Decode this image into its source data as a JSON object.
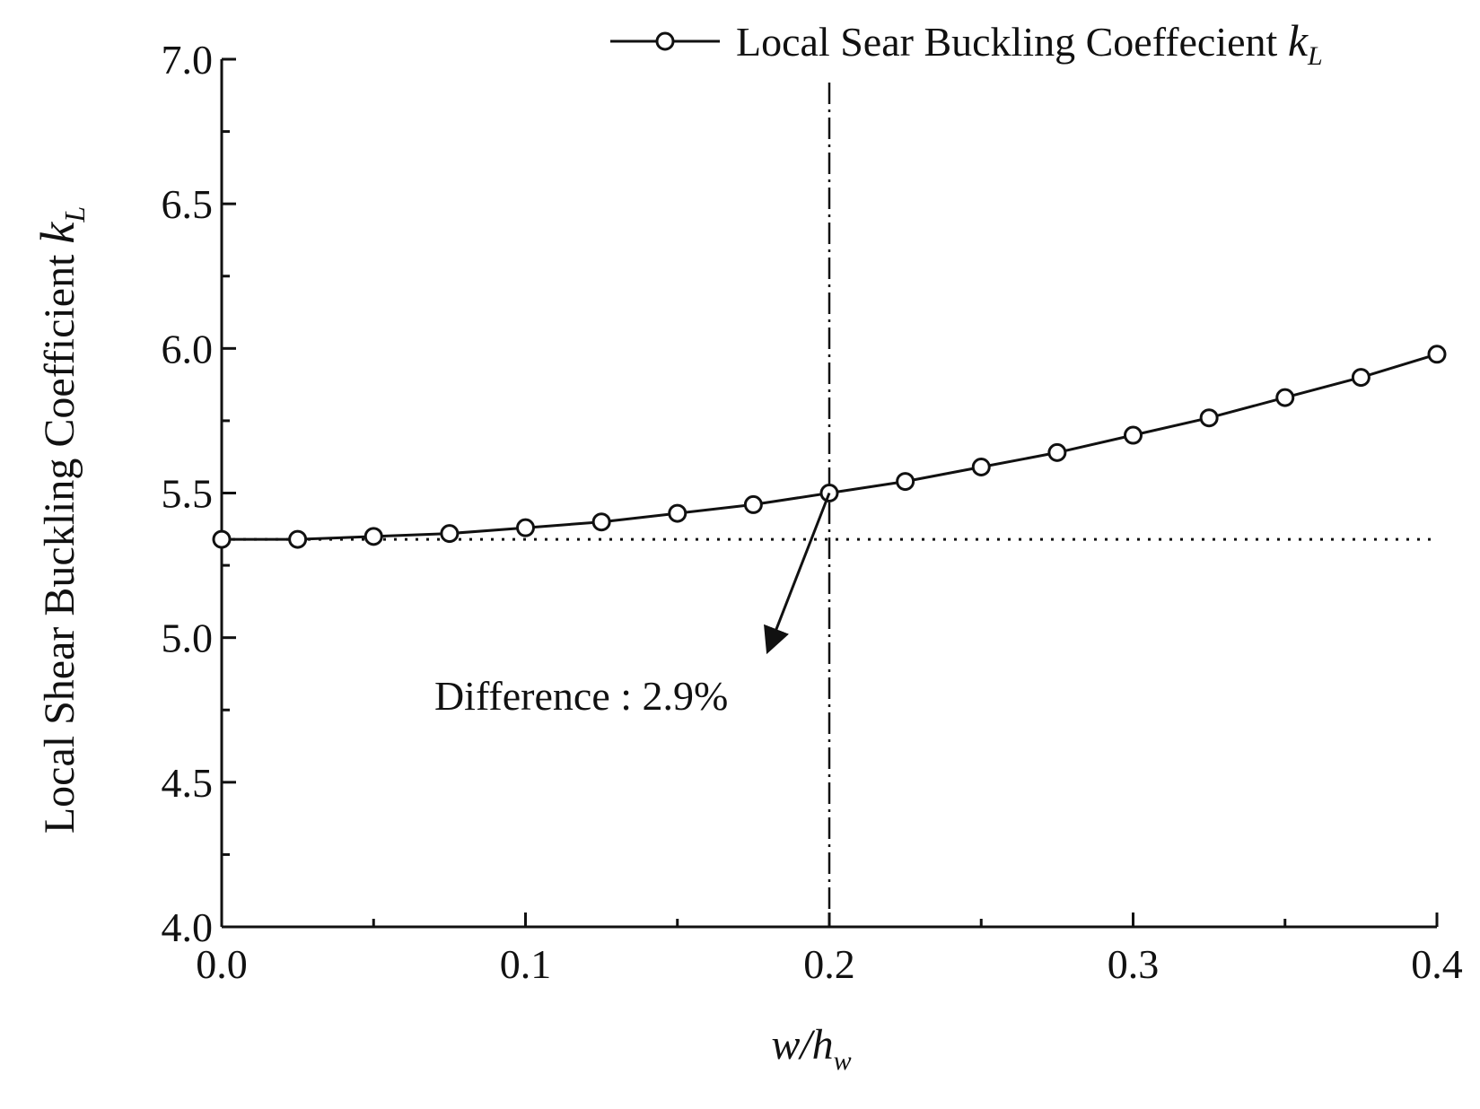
{
  "chart_data": {
    "type": "line",
    "title": "",
    "xlabel": {
      "main": "w/h",
      "sub": "w"
    },
    "ylabel": {
      "main": "Local Shear Buckling Coefficient ",
      "symbol": "k",
      "sub": "L"
    },
    "xlim": [
      0.0,
      0.4
    ],
    "ylim": [
      4.0,
      7.0
    ],
    "x_major_ticks": [
      0.0,
      0.1,
      0.2,
      0.3,
      0.4
    ],
    "x_minor_ticks": [
      0.05,
      0.15,
      0.25,
      0.35
    ],
    "x_tick_labels": [
      "0.0",
      "0.1",
      "0.2",
      "0.3",
      "0.4"
    ],
    "y_major_ticks": [
      4.0,
      4.5,
      5.0,
      5.5,
      6.0,
      6.5,
      7.0
    ],
    "y_minor_ticks": [
      4.25,
      4.75,
      5.25,
      5.75,
      6.25,
      6.75
    ],
    "y_tick_labels": [
      "4.0",
      "4.5",
      "5.0",
      "5.5",
      "6.0",
      "6.5",
      "7.0"
    ],
    "grid": false,
    "legend": {
      "position": "top-right",
      "entries": [
        {
          "text": "Local Sear Buckling Coeffecient ",
          "symbol": "k",
          "sub": "L"
        }
      ]
    },
    "series": [
      {
        "name": "Local Sear Buckling Coeffecient kL",
        "marker": "open-circle",
        "x": [
          0.0,
          0.025,
          0.05,
          0.075,
          0.1,
          0.125,
          0.15,
          0.175,
          0.2,
          0.225,
          0.25,
          0.275,
          0.3,
          0.325,
          0.35,
          0.375,
          0.4
        ],
        "y": [
          5.34,
          5.34,
          5.35,
          5.36,
          5.38,
          5.4,
          5.43,
          5.46,
          5.5,
          5.54,
          5.59,
          5.64,
          5.7,
          5.76,
          5.83,
          5.9,
          5.98
        ]
      }
    ],
    "reference_lines": {
      "horizontal": {
        "y": 5.34,
        "style": "dotted"
      },
      "vertical": {
        "x": 0.2,
        "style": "dash-dot"
      }
    },
    "annotation": {
      "text": "Difference : 2.9%",
      "arrow_from": [
        0.2,
        5.5
      ],
      "arrow_to": [
        0.18,
        4.96
      ],
      "text_at": [
        0.07,
        4.8
      ]
    }
  },
  "colors": {
    "line": "#111111",
    "background": "#ffffff"
  }
}
